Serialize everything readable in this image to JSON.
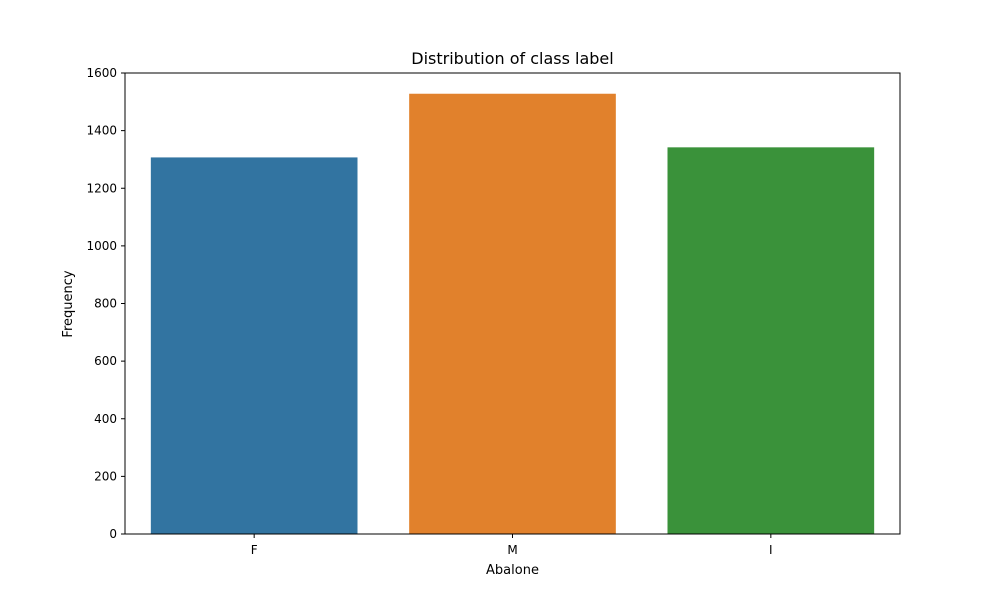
{
  "chart_data": {
    "type": "bar",
    "title": "Distribution of class label",
    "xlabel": "Abalone",
    "ylabel": "Frequency",
    "categories": [
      "F",
      "M",
      "I"
    ],
    "values": [
      1307,
      1528,
      1342
    ],
    "colors": [
      "#3274a1",
      "#e1812c",
      "#3a923a"
    ],
    "ylim": [
      0,
      1600
    ],
    "yticks": [
      0,
      200,
      400,
      600,
      800,
      1000,
      1200,
      1400,
      1600
    ],
    "grid": false,
    "legend": false
  }
}
